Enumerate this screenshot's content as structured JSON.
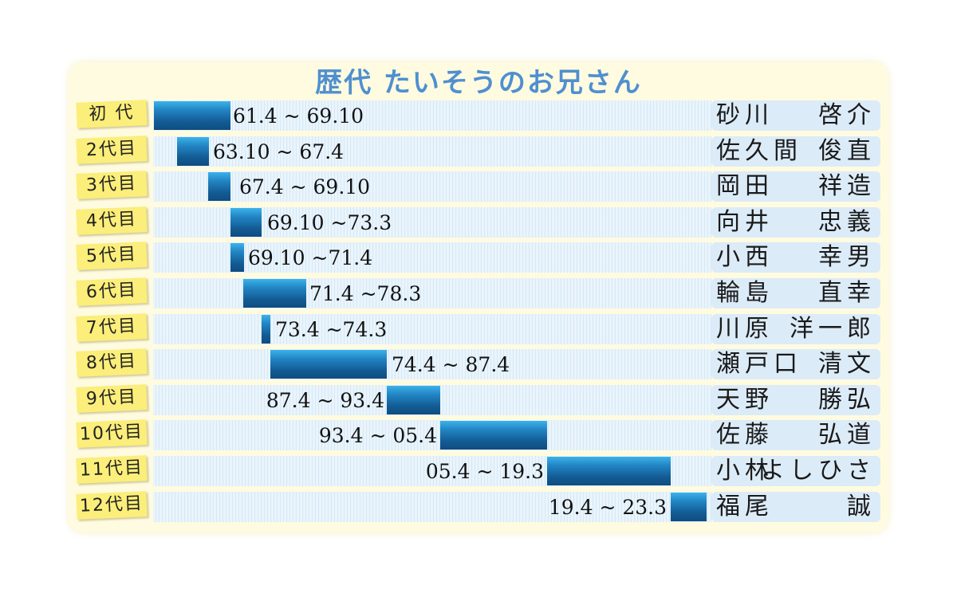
{
  "title": "歴代 たいそうのお兄さん",
  "colors": {
    "title": "#4f8fd0",
    "bar_top": "#3cb2ea",
    "bar_bottom": "#0e4d80",
    "generation_tag": "#fbee7a",
    "name_bg": "#dcebf8",
    "panel_bg": "#fffbe0"
  },
  "rows": [
    {
      "generation": "初 代",
      "period": "61.4 ~ 69.10",
      "last_name": "砂川",
      "first_name": "啓介"
    },
    {
      "generation": "2代目",
      "period": "63.10 ~ 67.4",
      "last_name": "佐久間",
      "first_name": "俊直"
    },
    {
      "generation": "3代目",
      "period": "67.4 ~ 69.10",
      "last_name": "岡田",
      "first_name": "祥造"
    },
    {
      "generation": "4代目",
      "period": "69.10 ~73.3",
      "last_name": "向井",
      "first_name": "忠義"
    },
    {
      "generation": "5代目",
      "period": "69.10 ~71.4",
      "last_name": "小西",
      "first_name": "幸男"
    },
    {
      "generation": "6代目",
      "period": "71.4 ~78.3",
      "last_name": "輪島",
      "first_name": "直幸"
    },
    {
      "generation": "7代目",
      "period": "73.4 ~74.3",
      "last_name": "川原",
      "first_name": "洋一郎"
    },
    {
      "generation": "8代目",
      "period": "74.4 ~ 87.4",
      "last_name": "瀬戸口",
      "first_name": "清文"
    },
    {
      "generation": "9代目",
      "period": "87.4 ~ 93.4",
      "last_name": "天野",
      "first_name": "勝弘"
    },
    {
      "generation": "10代目",
      "period": "93.4 ~ 05.4",
      "last_name": "佐藤",
      "first_name": "弘道"
    },
    {
      "generation": "11代目",
      "period": "05.4 ~ 19.3",
      "last_name": "小林",
      "first_name": "よしひさ"
    },
    {
      "generation": "12代目",
      "period": "19.4 ~ 23.3",
      "last_name": "福尾",
      "first_name": "誠"
    }
  ],
  "chart_data": {
    "type": "bar",
    "subtype": "gantt-timeline",
    "title": "歴代 たいそうのお兄さん",
    "xlabel": "",
    "ylabel": "",
    "categories": [
      "初代",
      "2代目",
      "3代目",
      "4代目",
      "5代目",
      "6代目",
      "7代目",
      "8代目",
      "9代目",
      "10代目",
      "11代目",
      "12代目"
    ],
    "series": [
      {
        "name": "start_year",
        "values": [
          1961.33,
          1963.83,
          1967.33,
          1969.83,
          1969.83,
          1971.33,
          1973.33,
          1974.33,
          1987.33,
          1993.33,
          2005.33,
          2019.33
        ]
      },
      {
        "name": "end_year",
        "values": [
          1969.83,
          1967.33,
          1969.83,
          1973.25,
          1971.33,
          1978.25,
          1974.25,
          1987.33,
          1993.33,
          2005.33,
          2019.25,
          2023.25
        ]
      }
    ],
    "labels": [
      "61.4 ~ 69.10",
      "63.10 ~ 67.4",
      "67.4 ~ 69.10",
      "69.10 ~ 73.3",
      "69.10 ~ 71.4",
      "71.4 ~ 78.3",
      "73.4 ~ 74.3",
      "74.4 ~ 87.4",
      "87.4 ~ 93.4",
      "93.4 ~ 05.4",
      "05.4 ~ 19.3",
      "19.4 ~ 23.3"
    ],
    "names": [
      "砂川 啓介",
      "佐久間 俊直",
      "岡田 祥造",
      "向井 忠義",
      "小西 幸男",
      "輪島 直幸",
      "川原 洋一郎",
      "瀬戸口 清文",
      "天野 勝弘",
      "佐藤 弘道",
      "小林よしひさ",
      "福尾 誠"
    ],
    "xlim": [
      1961,
      2023.5
    ],
    "grid": false,
    "legend": "none"
  }
}
